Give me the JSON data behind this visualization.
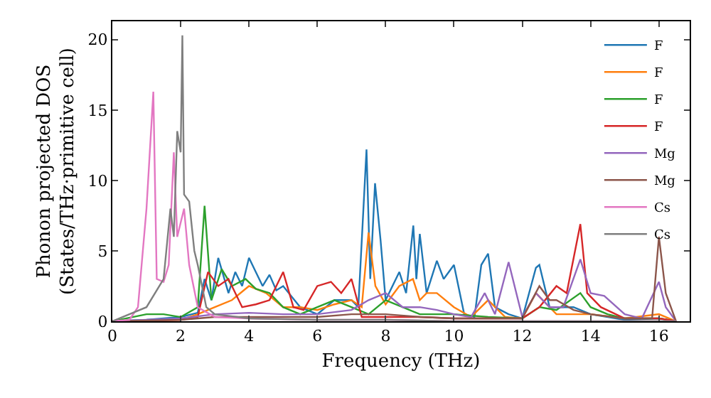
{
  "chart_data": {
    "type": "line",
    "xlabel": "Frequency (THz)",
    "ylabel": "Phonon projected DOS\n(States/THz·primitive cell)",
    "xlim": [
      0,
      16.9
    ],
    "ylim": [
      0,
      21.3
    ],
    "xticks": [
      0,
      2,
      4,
      6,
      8,
      10,
      12,
      14,
      16
    ],
    "yticks": [
      0,
      5,
      10,
      15,
      20
    ],
    "grid": false,
    "legend": "top right",
    "marker": "none",
    "line_style": "solid",
    "series": [
      {
        "name": "F",
        "color": "#1f77b4",
        "x": [
          0,
          1,
          2,
          2.5,
          2.7,
          2.9,
          3.1,
          3.4,
          3.6,
          3.8,
          4.0,
          4.2,
          4.4,
          4.6,
          4.8,
          5.0,
          5.5,
          6.0,
          6.5,
          7.0,
          7.2,
          7.44,
          7.55,
          7.69,
          7.85,
          8.0,
          8.2,
          8.4,
          8.6,
          8.81,
          8.9,
          9.0,
          9.2,
          9.5,
          9.7,
          10.0,
          10.3,
          10.6,
          10.8,
          11.0,
          11.2,
          11.6,
          12.0,
          12.4,
          12.5,
          12.8,
          13.5,
          14.0,
          15.0,
          16.0,
          16.5
        ],
        "values": [
          0,
          0.1,
          0.3,
          0.6,
          3,
          1.5,
          4.5,
          2,
          3.5,
          2.5,
          4.5,
          3.5,
          2.5,
          3.3,
          2.2,
          2.5,
          1,
          0.5,
          1.5,
          1.5,
          1,
          12.2,
          3,
          9.8,
          5.8,
          1.5,
          2.5,
          3.5,
          2,
          6.8,
          3,
          6.2,
          2,
          4.3,
          3,
          4,
          0.5,
          0.3,
          4,
          4.8,
          1,
          0.5,
          0.2,
          3.8,
          4,
          1,
          1,
          0.5,
          0.1,
          0.2,
          0
        ]
      },
      {
        "name": "F",
        "color": "#ff7f0e",
        "x": [
          0,
          2,
          2.5,
          3,
          3.5,
          4,
          4.5,
          5,
          5.5,
          6,
          6.5,
          7,
          7.3,
          7.5,
          7.7,
          8,
          8.4,
          8.8,
          9.0,
          9.2,
          9.5,
          10,
          10.5,
          11,
          11.5,
          12,
          12.4,
          13,
          14,
          15,
          16,
          16.5
        ],
        "values": [
          0,
          0.1,
          0.5,
          1,
          1.5,
          2.5,
          2,
          1,
          1,
          0.8,
          1.2,
          1.5,
          1,
          6.3,
          2.5,
          1.2,
          2.5,
          3,
          1.5,
          2,
          2,
          1,
          0.3,
          1.5,
          0.3,
          0.2,
          2,
          0.5,
          0.5,
          0.2,
          0.5,
          0
        ]
      },
      {
        "name": "F",
        "color": "#2ca02c",
        "x": [
          0,
          1,
          1.5,
          2,
          2.5,
          2.7,
          2.9,
          3.2,
          3.5,
          3.9,
          4.2,
          4.6,
          5,
          5.5,
          6,
          6.5,
          7,
          7.5,
          8,
          9,
          10,
          11,
          12,
          12.5,
          13,
          13.7,
          14,
          14.5,
          15,
          16,
          16.5
        ],
        "values": [
          0,
          0.5,
          0.5,
          0.3,
          1,
          8.2,
          1.5,
          3.7,
          2.5,
          3,
          2.3,
          2,
          1,
          0.5,
          1,
          1.5,
          1,
          0.5,
          1.5,
          0.5,
          0.5,
          0.3,
          0.2,
          1,
          0.8,
          2,
          1,
          0.5,
          0.2,
          0.2,
          0
        ]
      },
      {
        "name": "F",
        "color": "#d62728",
        "x": [
          0,
          2,
          2.5,
          2.8,
          3.1,
          3.4,
          3.8,
          4.2,
          4.6,
          5.0,
          5.3,
          5.6,
          6.0,
          6.4,
          6.7,
          7.0,
          7.3,
          8,
          9,
          10,
          11,
          12,
          12.5,
          13.0,
          13.3,
          13.7,
          13.9,
          14.3,
          15,
          16,
          16.5
        ],
        "values": [
          0,
          0.1,
          0.3,
          3.5,
          2.5,
          3,
          1,
          1.2,
          1.5,
          3.5,
          1,
          0.8,
          2.5,
          2.8,
          2,
          3,
          0.3,
          0.3,
          0.3,
          0.2,
          0.2,
          0.2,
          1,
          2.5,
          2,
          6.9,
          2,
          1,
          0.2,
          0.2,
          0
        ]
      },
      {
        "name": "Mg",
        "color": "#9467bd",
        "x": [
          0,
          2,
          3,
          4,
          5,
          6,
          7,
          7.5,
          8,
          8.5,
          9,
          9.5,
          10,
          10.5,
          10.9,
          11.2,
          11.6,
          12,
          12.4,
          12.8,
          13.2,
          13.7,
          14,
          14.4,
          15,
          15.5,
          16,
          16.2,
          16.5
        ],
        "values": [
          0,
          0.2,
          0.5,
          0.6,
          0.5,
          0.5,
          0.8,
          1.5,
          2,
          1,
          1,
          0.8,
          0.5,
          0.3,
          2,
          0.5,
          4.2,
          0.3,
          2,
          1,
          1,
          4.4,
          2,
          1.8,
          0.5,
          0.2,
          2.8,
          1,
          0
        ]
      },
      {
        "name": "Mg",
        "color": "#8c564b",
        "x": [
          0,
          2,
          3,
          4,
          5,
          6,
          7,
          8,
          9,
          10,
          11,
          12,
          12.5,
          12.8,
          13,
          13.5,
          14,
          15,
          15.8,
          16.0,
          16.2,
          16.5
        ],
        "values": [
          0,
          0.1,
          0.3,
          0.3,
          0.3,
          0.3,
          0.5,
          0.5,
          0.3,
          0.2,
          0.2,
          0.2,
          2.5,
          1.5,
          1.5,
          0.8,
          0.5,
          0.2,
          0.2,
          6,
          2,
          0
        ]
      },
      {
        "name": "Cs",
        "color": "#e377c2",
        "x": [
          0,
          0.5,
          0.75,
          1.0,
          1.2,
          1.3,
          1.5,
          1.65,
          1.8,
          1.9,
          2.0,
          2.1,
          2.25,
          2.5,
          3,
          4,
          6,
          8,
          10,
          16.5
        ],
        "values": [
          0,
          0.1,
          1,
          8,
          16.3,
          3,
          2.8,
          4,
          12,
          6,
          7,
          8,
          4,
          1,
          0.3,
          0.2,
          0.1,
          0.1,
          0,
          0
        ]
      },
      {
        "name": "Cs",
        "color": "#7f7f7f",
        "x": [
          0,
          1.0,
          1.5,
          1.7,
          1.8,
          1.9,
          2.0,
          2.05,
          2.1,
          2.25,
          2.4,
          2.5,
          2.75,
          3,
          4,
          6,
          8,
          10,
          16.5
        ],
        "values": [
          0,
          1,
          3,
          8,
          6,
          13.5,
          12,
          20.3,
          9,
          8.5,
          5,
          4,
          1,
          0.5,
          0.2,
          0.1,
          0.1,
          0,
          0
        ]
      }
    ]
  }
}
